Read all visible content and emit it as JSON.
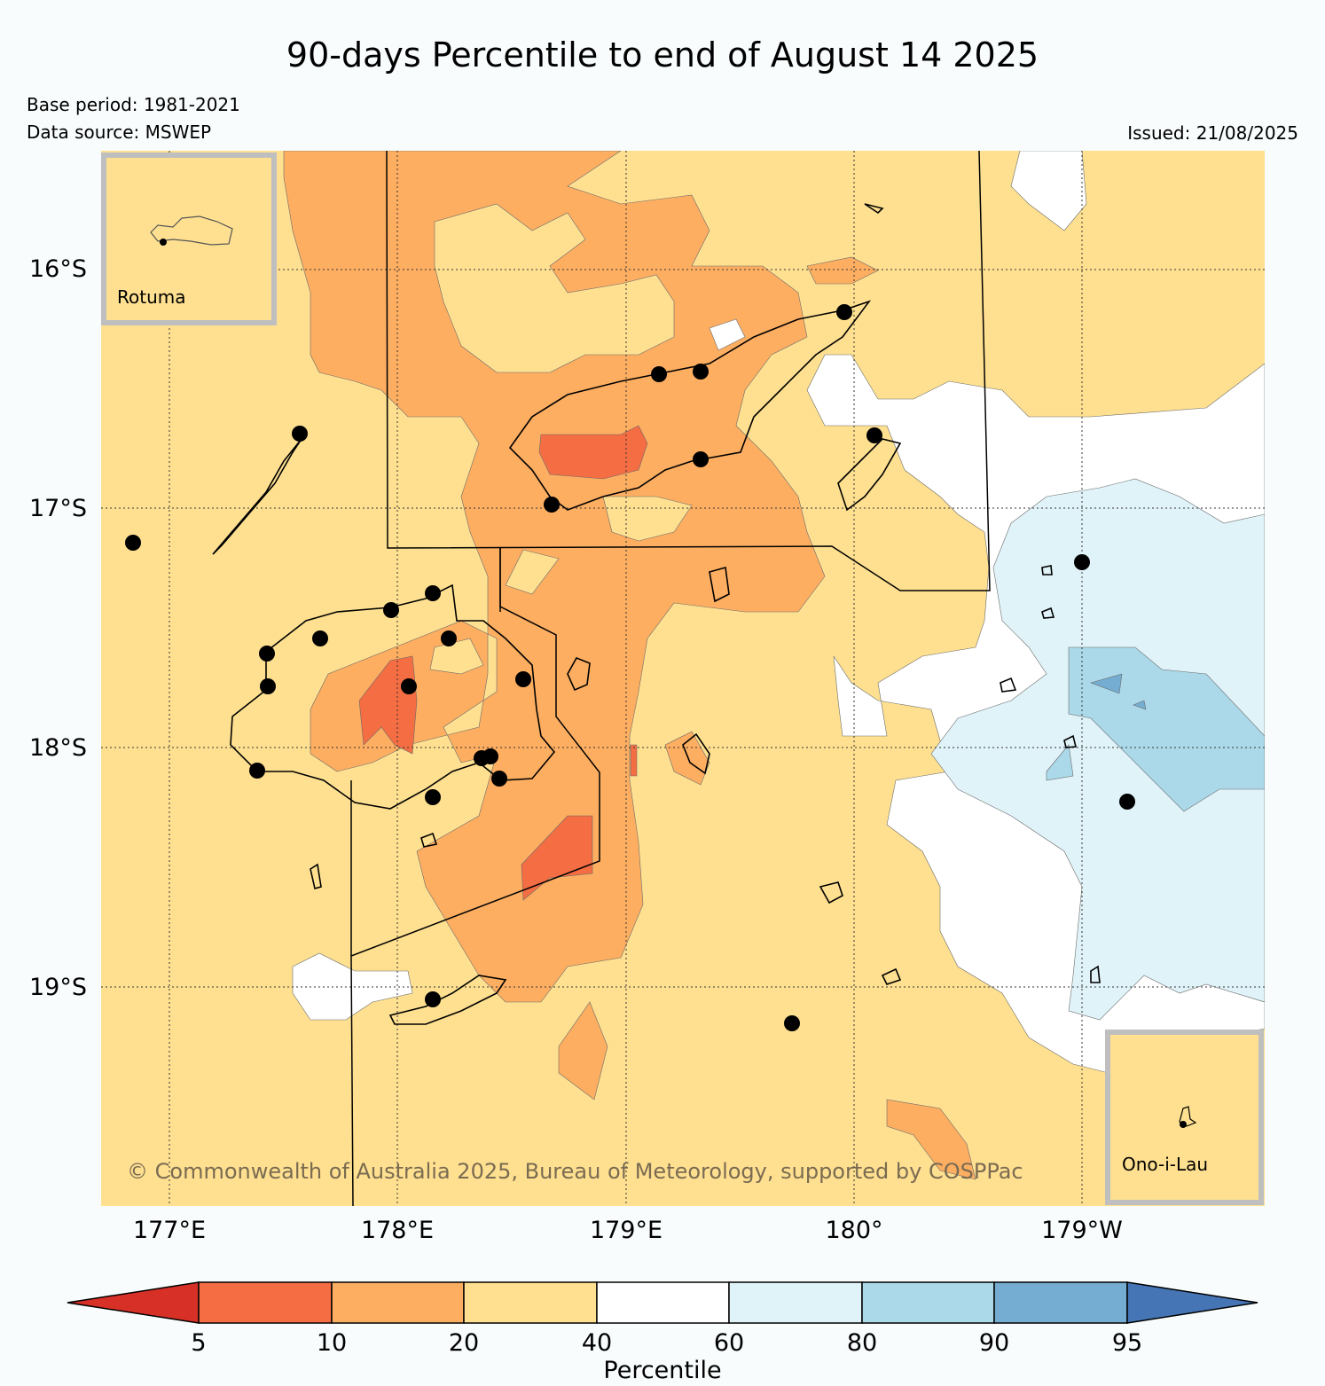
{
  "title": "90-days Percentile to end of August 14 2025",
  "base_period": "Base period: 1981-2021",
  "data_source": "Data source: MSWEP",
  "issued": "Issued: 21/08/2025",
  "lat_ticks": [
    "16°S",
    "17°S",
    "18°S",
    "19°S"
  ],
  "lon_ticks": [
    "177°E",
    "178°E",
    "179°E",
    "180°",
    "179°W"
  ],
  "insets": {
    "top_left": "Rotuma",
    "bottom_right": "Ono-i-Lau"
  },
  "copyright": "© Commonwealth of Australia 2025, Bureau of Meteorology, supported by COSPPac",
  "colorbar": {
    "label": "Percentile",
    "ticks": [
      "5",
      "10",
      "20",
      "40",
      "60",
      "80",
      "90",
      "95"
    ],
    "colors": {
      "below_5": "#d73027",
      "p5_10": "#f46d43",
      "p10_20": "#fdae61",
      "p20_40": "#fee090",
      "p40_60": "#ffffff",
      "p60_80": "#e0f3f8",
      "p80_90": "#abd9e9",
      "p90_95": "#74add1",
      "above_95": "#4575b4"
    }
  }
}
